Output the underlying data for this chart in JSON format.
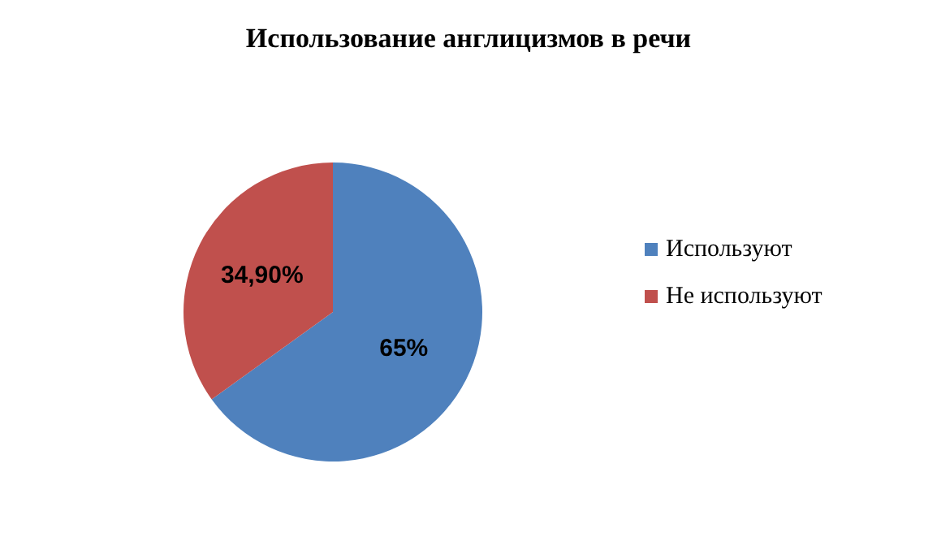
{
  "chart_data": {
    "type": "pie",
    "title": "Использование англицизмов в речи",
    "categories": [
      "Используют",
      "Не используют"
    ],
    "values": [
      65,
      34.9
    ],
    "colors": [
      "#4f81bd",
      "#c0504d"
    ],
    "value_labels": [
      "65%",
      "34,90%"
    ],
    "legend": "right"
  }
}
